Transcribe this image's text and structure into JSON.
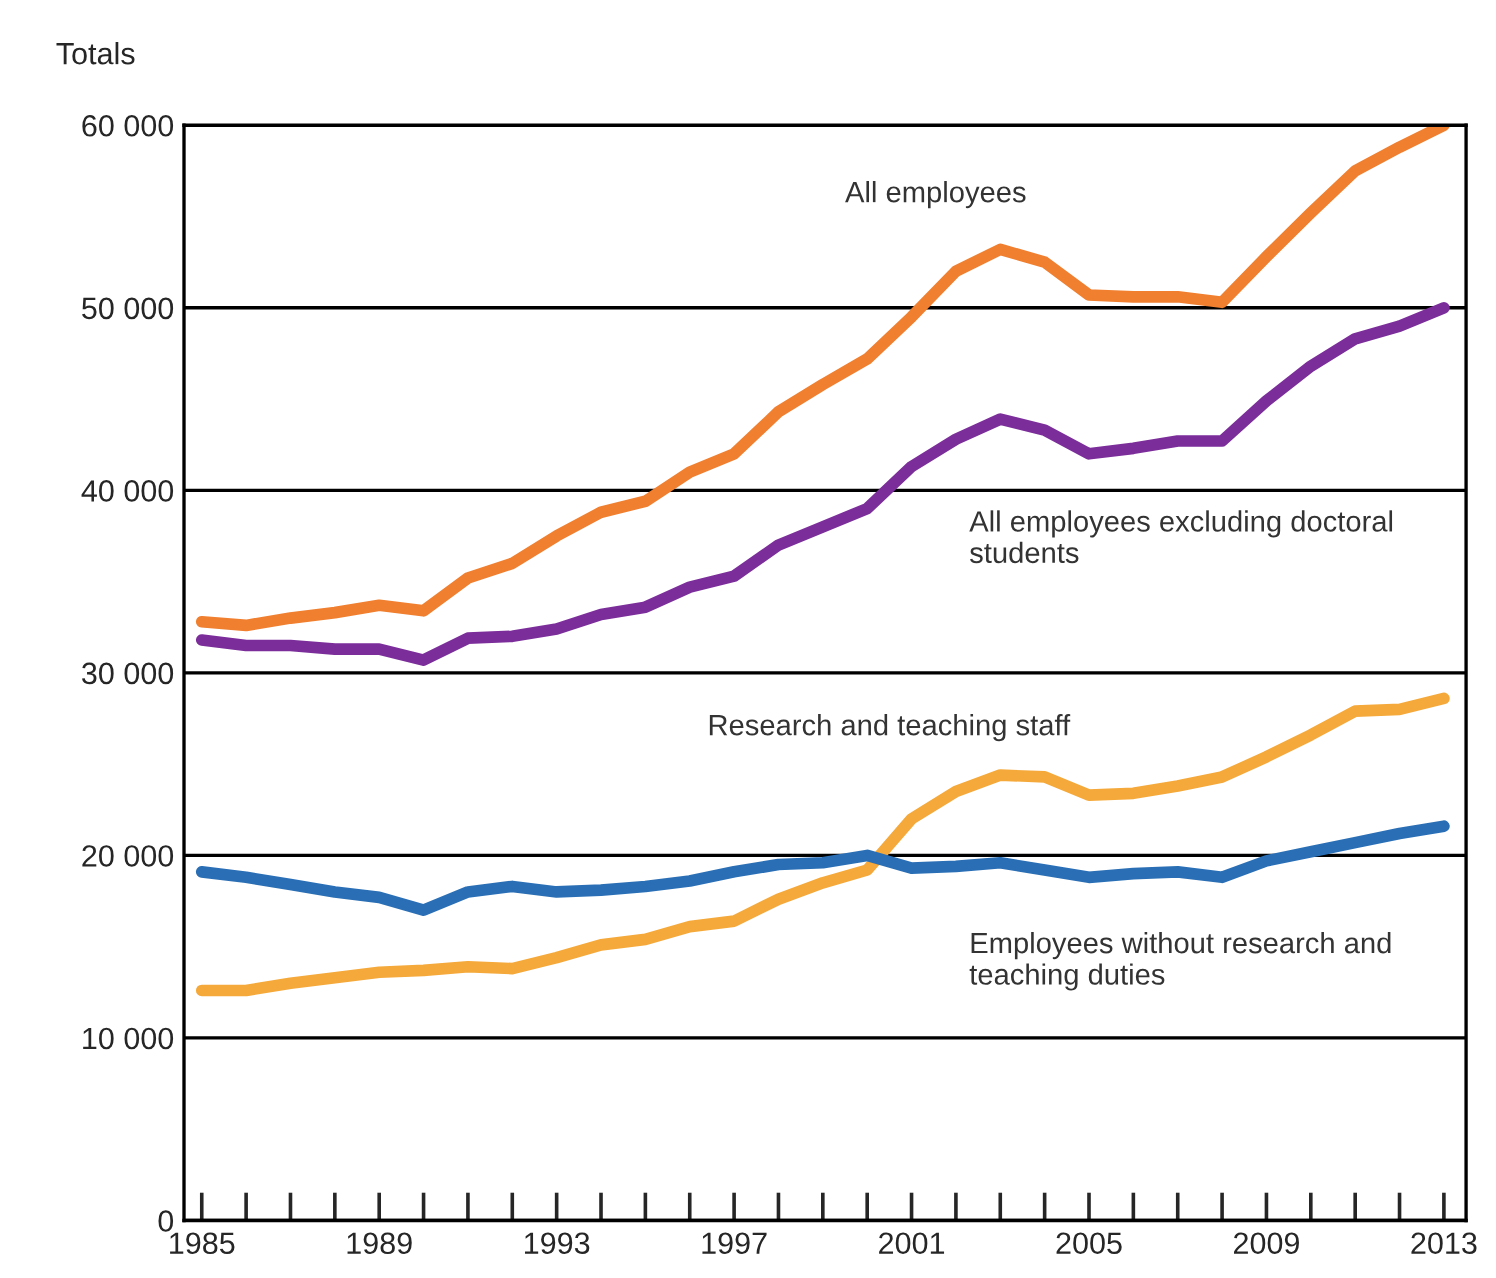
{
  "chart_data": {
    "type": "line",
    "ylabel": "Totals",
    "x": [
      1985,
      1986,
      1987,
      1988,
      1989,
      1990,
      1991,
      1992,
      1993,
      1994,
      1995,
      1996,
      1997,
      1998,
      1999,
      2000,
      2001,
      2002,
      2003,
      2004,
      2005,
      2006,
      2007,
      2008,
      2009,
      2010,
      2011,
      2012,
      2013
    ],
    "series": [
      {
        "name": "All employees",
        "color": "#f07f2f",
        "values": [
          32800,
          32600,
          33000,
          33300,
          33700,
          33400,
          35200,
          36000,
          37500,
          38800,
          39400,
          41000,
          42000,
          44300,
          45800,
          47200,
          49500,
          52000,
          53200,
          52500,
          50700,
          50600,
          50600,
          50300,
          52800,
          55200,
          57500,
          58800,
          60000
        ]
      },
      {
        "name": "All employees excluding doctoral students",
        "color": "#7b2d9a",
        "values": [
          31800,
          31500,
          31500,
          31300,
          31300,
          30700,
          31900,
          32000,
          32400,
          33200,
          33600,
          34700,
          35300,
          37000,
          38000,
          39000,
          41300,
          42800,
          43900,
          43300,
          42000,
          42300,
          42700,
          42700,
          44900,
          46800,
          48300,
          49000,
          50000
        ]
      },
      {
        "name": "Research and teaching staff",
        "color": "#f5a93a",
        "values": [
          12600,
          12600,
          13000,
          13300,
          13600,
          13700,
          13900,
          13800,
          14400,
          15100,
          15400,
          16100,
          16400,
          17600,
          18500,
          19200,
          22000,
          23500,
          24400,
          24300,
          23300,
          23400,
          23800,
          24300,
          25400,
          26600,
          27900,
          28000,
          28600
        ]
      },
      {
        "name": "Employees without research and teaching duties",
        "color": "#2a6fb5",
        "values": [
          19100,
          18800,
          18400,
          18000,
          17700,
          17000,
          18000,
          18300,
          18000,
          18100,
          18300,
          18600,
          19100,
          19500,
          19600,
          20000,
          19300,
          19400,
          19600,
          19200,
          18800,
          19000,
          19100,
          18800,
          19700,
          20200,
          20700,
          21200,
          21600
        ]
      }
    ],
    "xlim": [
      1984.6,
      2013.5
    ],
    "xticks": [
      1985,
      {
        "value": 1986,
        "label": null
      },
      {
        "value": 1987,
        "label": null
      },
      {
        "value": 1988,
        "label": null
      },
      1989,
      {
        "value": 1990,
        "label": null
      },
      {
        "value": 1991,
        "label": null
      },
      {
        "value": 1992,
        "label": null
      },
      1993,
      {
        "value": 1994,
        "label": null
      },
      {
        "value": 1995,
        "label": null
      },
      {
        "value": 1996,
        "label": null
      },
      1997,
      {
        "value": 1998,
        "label": null
      },
      {
        "value": 1999,
        "label": null
      },
      {
        "value": 2000,
        "label": null
      },
      2001,
      {
        "value": 2002,
        "label": null
      },
      {
        "value": 2003,
        "label": null
      },
      {
        "value": 2004,
        "label": null
      },
      2005,
      {
        "value": 2006,
        "label": null
      },
      {
        "value": 2007,
        "label": null
      },
      {
        "value": 2008,
        "label": null
      },
      2009,
      {
        "value": 2010,
        "label": null
      },
      {
        "value": 2011,
        "label": null
      },
      {
        "value": 2012,
        "label": null
      },
      2013
    ],
    "ylim": [
      0,
      60000
    ],
    "yticks": [
      0,
      {
        "value": 10000,
        "label": "10 000"
      },
      {
        "value": 20000,
        "label": "20 000"
      },
      {
        "value": 30000,
        "label": "30 000"
      },
      {
        "value": 40000,
        "label": "40 000"
      },
      {
        "value": 50000,
        "label": "50 000"
      },
      {
        "value": 60000,
        "label": "60 000"
      }
    ],
    "grid": "y",
    "line_style": "solid",
    "legend": false
  }
}
